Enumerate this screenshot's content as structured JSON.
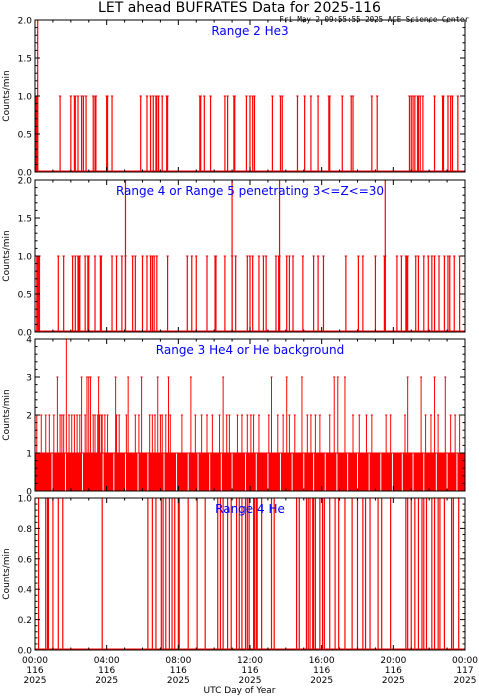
{
  "figure": {
    "title": "LET ahead BUFRATES Data for 2025-116",
    "timestamp": "Fri May  2 09:55:55 2025 ACE Science Center",
    "xlabel": "UTC Day of Year",
    "ylabel": "Counts/min",
    "xtick_labels": [
      {
        "time": "00:00",
        "doy": "116",
        "year": "2025"
      },
      {
        "time": "04:00",
        "doy": "116",
        "year": "2025"
      },
      {
        "time": "08:00",
        "doy": "116",
        "year": "2025"
      },
      {
        "time": "12:00",
        "doy": "116",
        "year": "2025"
      },
      {
        "time": "16:00",
        "doy": "116",
        "year": "2025"
      },
      {
        "time": "20:00",
        "doy": "116",
        "year": "2025"
      },
      {
        "time": "00:00",
        "doy": "117",
        "year": "2025"
      }
    ],
    "colors": {
      "data": "#ff0000",
      "panel_label": "#0000ff",
      "axes": "#000000"
    }
  },
  "chart_data": [
    {
      "type": "bar",
      "title": "Range 2 He3",
      "ylabel": "Counts/min",
      "xlim": [
        0,
        24
      ],
      "ylim": [
        0.0,
        2.0
      ],
      "yticks": [
        "0.0",
        "0.5",
        "1.0",
        "1.5",
        "2.0"
      ],
      "x_unit": "hours of DOY 116 UTC",
      "bar_value": 1,
      "one_count_times": [
        0.05,
        0.1,
        0.15,
        1.4,
        2.0,
        2.2,
        2.25,
        2.4,
        2.6,
        2.7,
        2.85,
        3.25,
        3.35,
        3.4,
        4.0,
        4.05,
        4.3,
        5.9,
        6.25,
        6.45,
        6.6,
        6.75,
        6.8,
        6.9,
        7.1,
        7.35,
        7.4,
        9.2,
        9.25,
        9.45,
        9.8,
        10.6,
        10.75,
        11.1,
        11.15,
        11.8,
        12.0,
        12.15,
        12.25,
        13.25,
        13.7,
        13.8,
        14.65,
        15.05,
        15.4,
        15.8,
        16.4,
        16.45,
        17.15,
        17.65,
        17.75,
        18.8,
        19.1,
        20.9,
        21.0,
        21.1,
        21.2,
        21.35,
        21.4,
        21.5,
        21.65,
        22.3,
        22.75,
        22.8,
        23.05,
        23.2,
        23.3,
        23.6
      ],
      "two_count_times": [
        0.15
      ]
    },
    {
      "type": "bar",
      "title": "Range 4 or Range 5 penetrating 3<=Z<=30",
      "ylabel": "Counts/min",
      "xlim": [
        0,
        24
      ],
      "ylim": [
        0.0,
        2.0
      ],
      "yticks": [
        "0.0",
        "0.5",
        "1.0",
        "1.5",
        "2.0"
      ],
      "x_unit": "hours of DOY 116 UTC",
      "bar_value": 1,
      "one_count_times": [
        0.1,
        0.15,
        0.2,
        0.25,
        1.3,
        1.6,
        2.1,
        2.25,
        2.4,
        2.45,
        2.5,
        2.8,
        2.95,
        3.0,
        3.35,
        3.65,
        3.7,
        4.3,
        4.55,
        4.85,
        5.05,
        5.45,
        5.6,
        6.0,
        6.25,
        6.45,
        6.55,
        6.65,
        6.8,
        7.4,
        8.5,
        8.75,
        9.0,
        9.6,
        10.05,
        10.1,
        10.6,
        11.0,
        11.2,
        11.85,
        12.0,
        12.15,
        12.5,
        12.75,
        12.9,
        13.45,
        13.6,
        13.65,
        14.05,
        14.2,
        14.4,
        14.95,
        15.55,
        15.8,
        16.1,
        17.35,
        18.05,
        18.3,
        19.0,
        19.5,
        19.55,
        20.2,
        20.45,
        20.7,
        20.75,
        20.8,
        21.25,
        21.4,
        21.7,
        21.95,
        22.15,
        22.3,
        22.55,
        22.85,
        23.05,
        23.15,
        23.4,
        23.7
      ],
      "two_count_times": [
        5.05,
        11.0,
        13.65,
        19.55
      ]
    },
    {
      "type": "bar",
      "title": "Range 3 He4 or He background",
      "ylabel": "Counts/min",
      "xlim": [
        0,
        24
      ],
      "ylim": [
        0,
        4
      ],
      "yticks": [
        "0",
        "1",
        "2",
        "3",
        "4"
      ],
      "x_unit": "hours of DOY 116 UTC",
      "baseline_value": 1,
      "note": "count is 1 almost every minute; spikes listed below",
      "spikes": [
        {
          "t": 0.1,
          "v": 2
        },
        {
          "t": 0.35,
          "v": 2
        },
        {
          "t": 0.6,
          "v": 2
        },
        {
          "t": 0.8,
          "v": 2
        },
        {
          "t": 1.05,
          "v": 2
        },
        {
          "t": 1.25,
          "v": 3
        },
        {
          "t": 1.4,
          "v": 2
        },
        {
          "t": 1.5,
          "v": 2
        },
        {
          "t": 1.6,
          "v": 2
        },
        {
          "t": 1.75,
          "v": 4
        },
        {
          "t": 1.9,
          "v": 2
        },
        {
          "t": 2.05,
          "v": 2
        },
        {
          "t": 2.2,
          "v": 2
        },
        {
          "t": 2.35,
          "v": 2
        },
        {
          "t": 2.5,
          "v": 2
        },
        {
          "t": 2.6,
          "v": 3
        },
        {
          "t": 2.8,
          "v": 2
        },
        {
          "t": 2.9,
          "v": 3
        },
        {
          "t": 3.0,
          "v": 3
        },
        {
          "t": 3.1,
          "v": 3
        },
        {
          "t": 3.25,
          "v": 2
        },
        {
          "t": 3.35,
          "v": 2
        },
        {
          "t": 3.5,
          "v": 2
        },
        {
          "t": 3.55,
          "v": 3
        },
        {
          "t": 3.6,
          "v": 2
        },
        {
          "t": 3.7,
          "v": 2
        },
        {
          "t": 3.75,
          "v": 2
        },
        {
          "t": 3.9,
          "v": 2
        },
        {
          "t": 4.05,
          "v": 2
        },
        {
          "t": 4.5,
          "v": 3
        },
        {
          "t": 4.55,
          "v": 2
        },
        {
          "t": 4.7,
          "v": 2
        },
        {
          "t": 5.1,
          "v": 2
        },
        {
          "t": 5.2,
          "v": 3
        },
        {
          "t": 5.6,
          "v": 2
        },
        {
          "t": 5.8,
          "v": 2
        },
        {
          "t": 5.95,
          "v": 3
        },
        {
          "t": 6.4,
          "v": 2
        },
        {
          "t": 6.55,
          "v": 2
        },
        {
          "t": 6.7,
          "v": 2
        },
        {
          "t": 6.85,
          "v": 3
        },
        {
          "t": 7.0,
          "v": 2
        },
        {
          "t": 7.1,
          "v": 2
        },
        {
          "t": 7.3,
          "v": 2
        },
        {
          "t": 7.45,
          "v": 3
        },
        {
          "t": 7.55,
          "v": 2
        },
        {
          "t": 8.2,
          "v": 2
        },
        {
          "t": 8.7,
          "v": 3
        },
        {
          "t": 8.95,
          "v": 2
        },
        {
          "t": 9.3,
          "v": 2
        },
        {
          "t": 9.6,
          "v": 2
        },
        {
          "t": 9.9,
          "v": 2
        },
        {
          "t": 10.3,
          "v": 2
        },
        {
          "t": 10.5,
          "v": 3
        },
        {
          "t": 10.7,
          "v": 2
        },
        {
          "t": 10.85,
          "v": 2
        },
        {
          "t": 11.3,
          "v": 2
        },
        {
          "t": 11.55,
          "v": 2
        },
        {
          "t": 11.85,
          "v": 2
        },
        {
          "t": 12.05,
          "v": 2
        },
        {
          "t": 12.2,
          "v": 2
        },
        {
          "t": 12.5,
          "v": 2
        },
        {
          "t": 13.05,
          "v": 2
        },
        {
          "t": 13.2,
          "v": 3
        },
        {
          "t": 13.55,
          "v": 2
        },
        {
          "t": 13.85,
          "v": 2
        },
        {
          "t": 14.05,
          "v": 3
        },
        {
          "t": 14.2,
          "v": 2
        },
        {
          "t": 14.5,
          "v": 2
        },
        {
          "t": 14.9,
          "v": 3
        },
        {
          "t": 15.2,
          "v": 2
        },
        {
          "t": 15.4,
          "v": 2
        },
        {
          "t": 15.65,
          "v": 2
        },
        {
          "t": 15.9,
          "v": 2
        },
        {
          "t": 16.45,
          "v": 2
        },
        {
          "t": 16.7,
          "v": 3
        },
        {
          "t": 16.9,
          "v": 3
        },
        {
          "t": 17.3,
          "v": 3
        },
        {
          "t": 17.75,
          "v": 2
        },
        {
          "t": 18.1,
          "v": 2
        },
        {
          "t": 18.5,
          "v": 2
        },
        {
          "t": 18.8,
          "v": 2
        },
        {
          "t": 19.6,
          "v": 2
        },
        {
          "t": 19.85,
          "v": 2
        },
        {
          "t": 20.65,
          "v": 2
        },
        {
          "t": 20.8,
          "v": 3
        },
        {
          "t": 21.55,
          "v": 3
        },
        {
          "t": 21.8,
          "v": 2
        },
        {
          "t": 22.1,
          "v": 2
        },
        {
          "t": 22.3,
          "v": 3
        },
        {
          "t": 22.5,
          "v": 2
        },
        {
          "t": 22.9,
          "v": 3
        },
        {
          "t": 23.2,
          "v": 2
        },
        {
          "t": 23.45,
          "v": 2
        },
        {
          "t": 23.7,
          "v": 2
        }
      ],
      "zero_times": [
        0.95,
        1.7,
        2.65,
        3.8,
        4.4,
        5.05,
        5.75,
        6.3,
        7.2,
        7.9,
        8.55,
        9.1,
        9.75,
        10.4,
        11.0,
        11.75,
        12.35,
        13.0,
        13.7,
        14.35,
        15.0,
        15.55,
        16.2,
        16.85,
        17.45,
        18.0,
        18.65,
        19.3,
        19.95,
        20.5,
        21.1,
        21.7,
        22.4,
        23.0,
        23.55
      ]
    },
    {
      "type": "bar",
      "title": "Range 4 He",
      "ylabel": "Counts/min",
      "xlim": [
        0,
        24
      ],
      "ylim": [
        0.0,
        1.0
      ],
      "yticks": [
        "0.0",
        "0.2",
        "0.4",
        "0.6",
        "0.8",
        "1.0"
      ],
      "x_unit": "hours of DOY 116 UTC",
      "bar_value": 1,
      "one_count_times": [
        0.2,
        0.6,
        0.7,
        0.75,
        1.0,
        1.3,
        1.55,
        3.75,
        6.3,
        6.55,
        6.75,
        7.05,
        7.15,
        7.3,
        7.5,
        7.65,
        7.8,
        8.0,
        8.05,
        8.55,
        9.05,
        9.5,
        10.2,
        10.35,
        10.5,
        10.75,
        10.95,
        11.25,
        11.4,
        11.55,
        11.75,
        11.85,
        11.95,
        12.2,
        12.25,
        12.35,
        12.4,
        12.65,
        13.2,
        13.35,
        14.6,
        14.75,
        15.15,
        15.25,
        15.35,
        15.5,
        15.55,
        15.65,
        15.9,
        16.05,
        16.15,
        16.45,
        16.75,
        16.95,
        17.3,
        17.7,
        18.0,
        18.3,
        18.45,
        18.7,
        19.15,
        19.35,
        19.85,
        20.7,
        20.8,
        21.0,
        21.2,
        21.4,
        21.6,
        21.7,
        21.85,
        22.15,
        22.3,
        22.5,
        22.6,
        22.85,
        23.25,
        23.35,
        23.65
      ]
    }
  ]
}
